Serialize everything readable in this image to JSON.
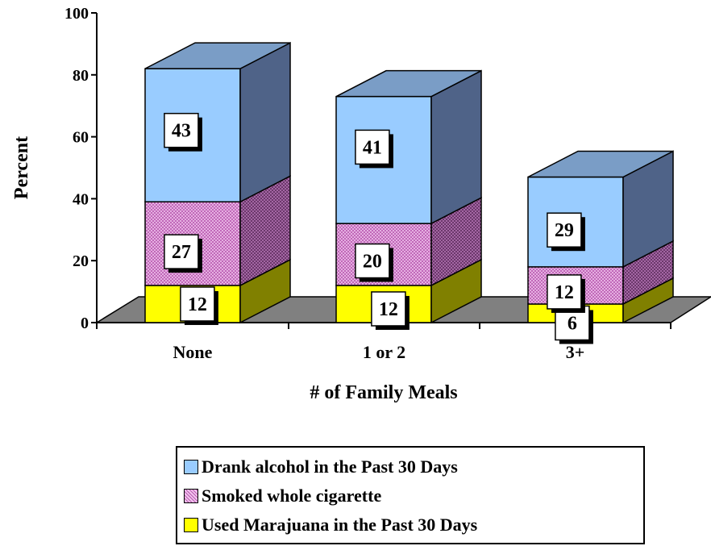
{
  "chart_data": {
    "type": "bar",
    "stacked": true,
    "three_d": true,
    "categories": [
      "None",
      "1 or 2",
      "3+"
    ],
    "series": [
      {
        "name": "Used Marajuana in the Past 30 Days",
        "values": [
          12,
          12,
          6
        ],
        "color": "#FFFF00",
        "side_color": "#808000"
      },
      {
        "name": "Smoked whole cigarette",
        "values": [
          27,
          20,
          12
        ],
        "color": "#E0A0E0",
        "side_color": "#7A3A7A",
        "pattern": "crosshatch"
      },
      {
        "name": "Drank alcohol in the Past 30 Days",
        "values": [
          43,
          41,
          29
        ],
        "color": "#99CCFF",
        "side_color": "#4F6388",
        "top_color": "#7A9DC6"
      }
    ],
    "xlabel": "# of Family Meals",
    "ylabel": "Percent",
    "ylim": [
      0,
      100
    ],
    "yticks": [
      0,
      20,
      40,
      60,
      80,
      100
    ],
    "grid": false,
    "floor_color": "#808080",
    "legend_position": "bottom"
  },
  "legend": {
    "items": [
      {
        "label": "Drank alcohol in the Past 30 Days",
        "color": "#99CCFF",
        "pattern": "none"
      },
      {
        "label": "Smoked whole cigarette",
        "color": "#E0A0E0",
        "pattern": "crosshatch"
      },
      {
        "label": "Used Marajuana in the Past 30 Days",
        "color": "#FFFF00",
        "pattern": "none"
      }
    ]
  }
}
